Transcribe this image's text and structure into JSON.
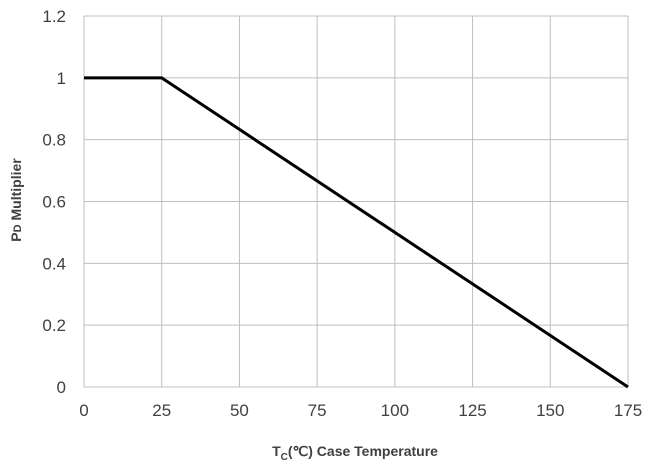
{
  "chart_data": {
    "type": "line",
    "title": "",
    "xlabel": {
      "main": "T",
      "sub": "C",
      "rest": "(℃) Case Temperature"
    },
    "ylabel": {
      "main": "P",
      "sub": "D",
      "rest": " Multiplier"
    },
    "xlim": [
      0,
      175
    ],
    "ylim": [
      0,
      1.2
    ],
    "x_ticks": [
      0,
      25,
      50,
      75,
      100,
      125,
      150,
      175
    ],
    "y_ticks": [
      0,
      0.2,
      0.4,
      0.6,
      0.8,
      1,
      1.2
    ],
    "x_tick_labels": [
      "0",
      "25",
      "50",
      "75",
      "100",
      "125",
      "150",
      "175"
    ],
    "y_tick_labels": [
      "0",
      "0.2",
      "0.4",
      "0.6",
      "0.8",
      "1",
      "1.2"
    ],
    "grid": true,
    "legend": "none",
    "series": [
      {
        "x": [
          0,
          25,
          175
        ],
        "y": [
          1,
          1,
          0
        ],
        "color": "#000000"
      }
    ],
    "colors": {
      "grid": "#bfbfbf",
      "text": "#404040",
      "line": "#000000"
    }
  }
}
